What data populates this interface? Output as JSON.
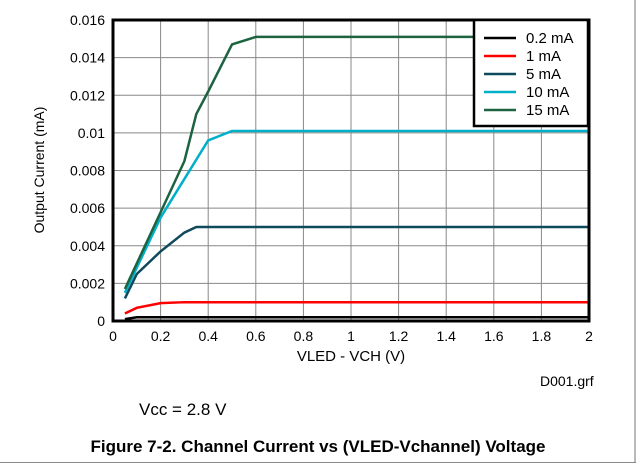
{
  "chart_data": {
    "type": "line",
    "title": "Figure 7-2. Channel Current vs (VLED-Vchannel) Voltage",
    "xlabel": "VLED - VCH (V)",
    "ylabel": "Output Current (mA)",
    "xlim": [
      0,
      2
    ],
    "ylim": [
      0,
      0.016
    ],
    "xticks": [
      "0",
      "0.2",
      "0.4",
      "0.6",
      "0.8",
      "1",
      "1.2",
      "1.4",
      "1.6",
      "1.8",
      "2"
    ],
    "yticks": [
      "0",
      "0.002",
      "0.004",
      "0.006",
      "0.008",
      "0.01",
      "0.012",
      "0.014",
      "0.016"
    ],
    "grid": true,
    "legend_position": "top-right",
    "series": [
      {
        "name": "0.2 mA",
        "color": "#000000",
        "x": [
          0.05,
          0.1,
          2
        ],
        "y": [
          0.0001,
          0.0002,
          0.0002
        ]
      },
      {
        "name": "1 mA",
        "color": "#ff0000",
        "x": [
          0.05,
          0.1,
          0.2,
          0.3,
          2
        ],
        "y": [
          0.0004,
          0.0007,
          0.00095,
          0.001,
          0.001
        ]
      },
      {
        "name": "5 mA",
        "color": "#0f4a5c",
        "x": [
          0.05,
          0.1,
          0.2,
          0.3,
          0.35,
          2
        ],
        "y": [
          0.0012,
          0.0025,
          0.0037,
          0.0047,
          0.005,
          0.005
        ]
      },
      {
        "name": "10 mA",
        "color": "#00b0c8",
        "x": [
          0.05,
          0.2,
          0.4,
          0.5,
          2
        ],
        "y": [
          0.0015,
          0.0055,
          0.0096,
          0.0101,
          0.0101
        ]
      },
      {
        "name": "15 mA",
        "color": "#1e6340",
        "x": [
          0.05,
          0.3,
          0.35,
          0.4,
          0.5,
          0.6,
          2
        ],
        "y": [
          0.0017,
          0.0085,
          0.011,
          0.0122,
          0.0147,
          0.0151,
          0.0151
        ]
      }
    ],
    "annotations": {
      "file": "D001.grf",
      "condition": "Vcc = 2.8 V"
    }
  }
}
